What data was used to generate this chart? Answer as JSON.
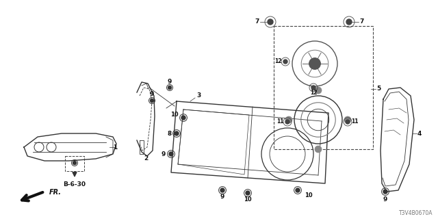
{
  "bg_color": "#ffffff",
  "diagram_id": "T3V4B0670A",
  "fig_width": 6.4,
  "fig_height": 3.2,
  "dpi": 100,
  "line_color": "#333333",
  "label_color": "#111111"
}
